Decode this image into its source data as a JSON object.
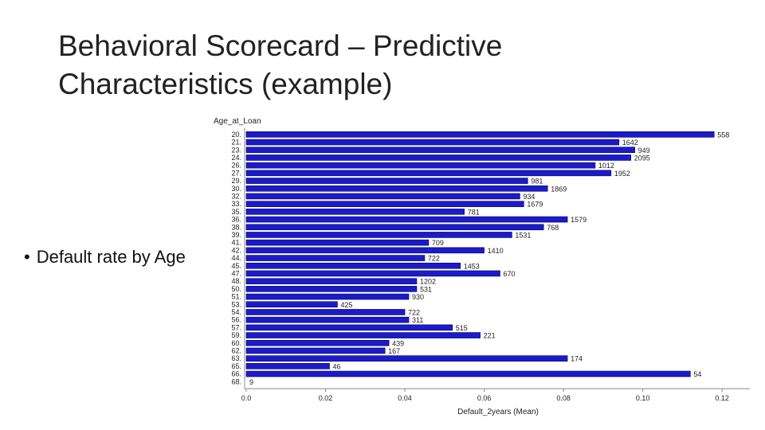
{
  "slide": {
    "title": "Behavioral Scorecard – Predictive Characteristics (example)",
    "bullet": "Default rate by Age",
    "bullet_marker": "•"
  },
  "colors": {
    "bar": "#1b1bc8",
    "bar_stroke": "#000066",
    "axis": "#888888",
    "text": "#222222"
  },
  "chart_data": {
    "type": "bar",
    "orientation": "horizontal",
    "title": "",
    "ylabel": "Age_at_Loan",
    "xlabel": "Default_2years (Mean)",
    "xlim": [
      0,
      0.127
    ],
    "xticks": [
      0.0,
      0.02,
      0.04,
      0.06,
      0.08,
      0.1,
      0.12
    ],
    "xtick_labels": [
      "0.0",
      "0.02",
      "0.04",
      "0.06",
      "0.08",
      "0.10",
      "0.12"
    ],
    "categories": [
      "20.",
      "21.",
      "23.",
      "24.",
      "26.",
      "27.",
      "29.",
      "30.",
      "32.",
      "33.",
      "35.",
      "36.",
      "38.",
      "39.",
      "41.",
      "42.",
      "44.",
      "45.",
      "47.",
      "48.",
      "50.",
      "51.",
      "53.",
      "54.",
      "56.",
      "57.",
      "59.",
      "60.",
      "62.",
      "63.",
      "65.",
      "66.",
      "68."
    ],
    "values": [
      0.118,
      0.094,
      0.098,
      0.097,
      0.088,
      0.092,
      0.071,
      0.076,
      0.069,
      0.07,
      0.055,
      0.081,
      0.075,
      0.067,
      0.046,
      0.06,
      0.045,
      0.054,
      0.064,
      0.043,
      0.043,
      0.041,
      0.023,
      0.04,
      0.041,
      0.052,
      0.059,
      0.036,
      0.035,
      0.081,
      0.021,
      0.112,
      0.0
    ],
    "counts": [
      "558",
      "1642",
      "949",
      "2095",
      "1012",
      "1952",
      "981",
      "1869",
      "934",
      "1679",
      "781",
      "1579",
      "768",
      "1531",
      "709",
      "1410",
      "722",
      "1453",
      "670",
      "1202",
      "531",
      "930",
      "425",
      "722",
      "311",
      "515",
      "221",
      "439",
      "167",
      "174",
      "46",
      "54",
      "9"
    ]
  }
}
